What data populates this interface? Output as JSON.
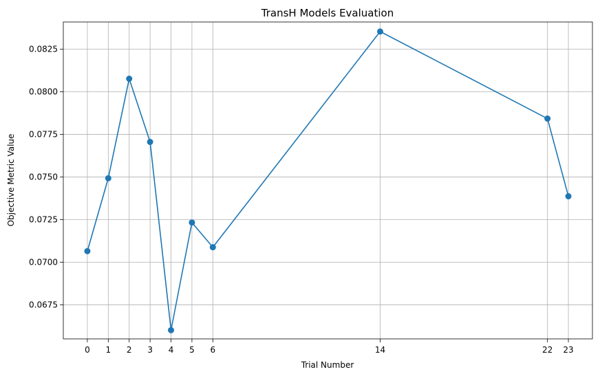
{
  "chart_data": {
    "type": "line",
    "title": "TransH Models Evaluation",
    "xlabel": "Trial Number",
    "ylabel": "Objective Metric Value",
    "x": [
      0,
      1,
      2,
      3,
      4,
      5,
      6,
      14,
      22,
      23
    ],
    "series": [
      {
        "values": [
          0.07065,
          0.07493,
          0.08077,
          0.07706,
          0.06601,
          0.07233,
          0.07088,
          0.08354,
          0.07843,
          0.07387
        ]
      }
    ],
    "xlim": [
      -1.15,
      24.15
    ],
    "ylim": [
      0.0655,
      0.0841
    ],
    "xticks": [
      0,
      1,
      2,
      3,
      4,
      5,
      6,
      14,
      22,
      23
    ],
    "yticks": [
      0.0675,
      0.07,
      0.0725,
      0.075,
      0.0775,
      0.08,
      0.0825
    ],
    "ytick_labels": [
      "0.0675",
      "0.0700",
      "0.0725",
      "0.0750",
      "0.0775",
      "0.0800",
      "0.0825"
    ],
    "grid": true,
    "line_color": "#1f77b4",
    "marker": "circle"
  }
}
